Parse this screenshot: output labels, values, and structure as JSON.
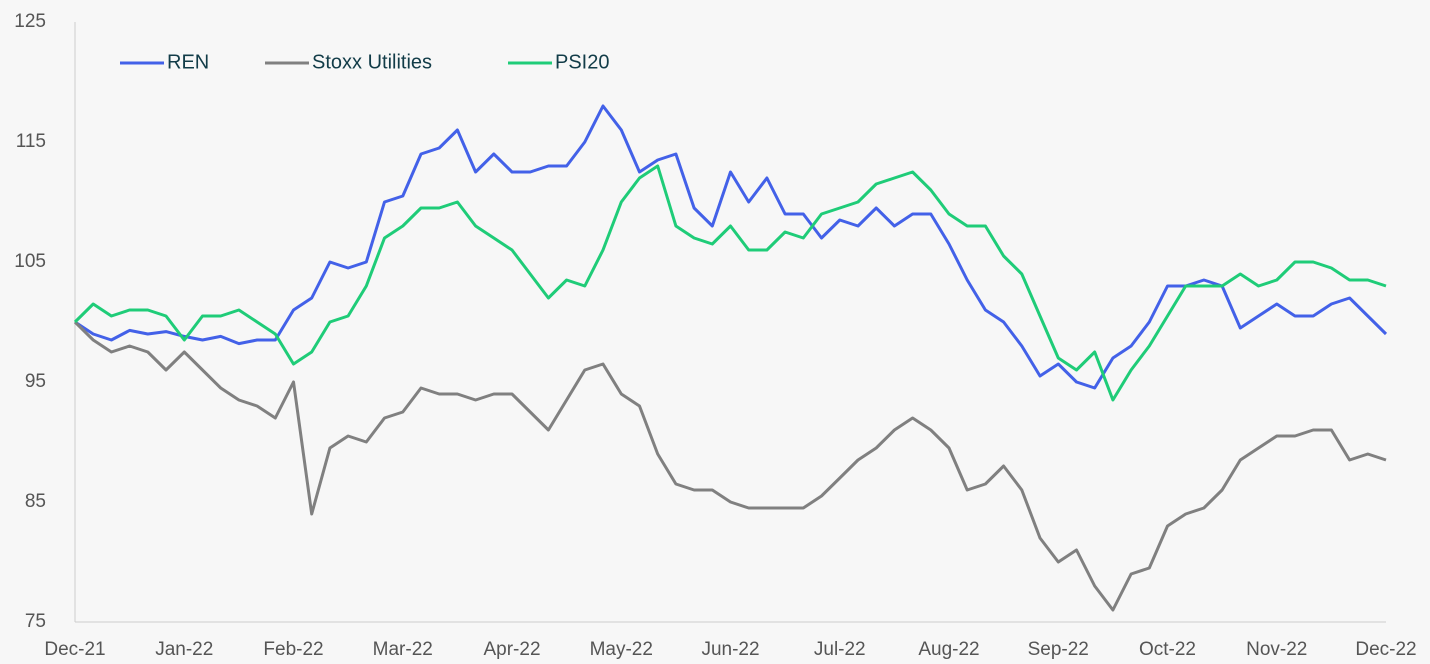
{
  "chart_data": {
    "type": "line",
    "categories": [
      "Dec-21",
      null,
      null,
      null,
      null,
      null,
      "Jan-22",
      null,
      null,
      null,
      null,
      null,
      "Feb-22",
      null,
      null,
      null,
      null,
      null,
      "Mar-22",
      null,
      null,
      null,
      null,
      null,
      "Apr-22",
      null,
      null,
      null,
      null,
      null,
      "May-22",
      null,
      null,
      null,
      null,
      null,
      "Jun-22",
      null,
      null,
      null,
      null,
      null,
      "Jul-22",
      null,
      null,
      null,
      null,
      null,
      "Aug-22",
      null,
      null,
      null,
      null,
      null,
      "Sep-22",
      null,
      null,
      null,
      null,
      null,
      "Oct-22",
      null,
      null,
      null,
      null,
      null,
      "Nov-22",
      null,
      null,
      null,
      null,
      null,
      "Dec-22"
    ],
    "series": [
      {
        "name": "REN",
        "color": "#4361e8",
        "values": [
          100,
          99,
          98.5,
          99.3,
          99,
          99.2,
          98.8,
          98.5,
          98.8,
          98.2,
          98.5,
          98.5,
          101,
          102,
          105,
          104.5,
          105,
          110,
          110.5,
          114,
          114.5,
          116,
          112.5,
          114,
          112.5,
          112.5,
          113,
          113,
          115,
          118,
          116,
          112.5,
          113.5,
          114,
          109.5,
          108,
          112.5,
          110,
          112,
          109,
          109,
          107,
          108.5,
          108,
          109.5,
          108,
          109,
          109,
          106.5,
          103.5,
          101,
          100,
          98,
          95.5,
          96.5,
          95,
          94.5,
          97,
          98,
          100,
          103,
          103,
          103.5,
          103,
          99.5,
          100.5,
          101.5,
          100.5,
          100.5,
          101.5,
          102,
          100.5,
          99
        ]
      },
      {
        "name": "Stoxx Utilities",
        "color": "#808080",
        "values": [
          100,
          98.5,
          97.5,
          98,
          97.5,
          96,
          97.5,
          96,
          94.5,
          93.5,
          93,
          92,
          95,
          84,
          89.5,
          90.5,
          90,
          92,
          92.5,
          94.5,
          94,
          94,
          93.5,
          94,
          94,
          92.5,
          91,
          93.5,
          96,
          96.5,
          94,
          93,
          89,
          86.5,
          86,
          86,
          85,
          84.5,
          84.5,
          84.5,
          84.5,
          85.5,
          87,
          88.5,
          89.5,
          91,
          92,
          91,
          89.5,
          86,
          86.5,
          88,
          86,
          82,
          80,
          81,
          78,
          76,
          79,
          79.5,
          83,
          84,
          84.5,
          86,
          88.5,
          89.5,
          90.5,
          90.5,
          91,
          91,
          88.5,
          89,
          88.5
        ]
      },
      {
        "name": "PSI20",
        "color": "#1fcc78",
        "values": [
          100,
          101.5,
          100.5,
          101,
          101,
          100.5,
          98.5,
          100.5,
          100.5,
          101,
          100,
          99,
          96.5,
          97.5,
          100,
          100.5,
          103,
          107,
          108,
          109.5,
          109.5,
          110,
          108,
          107,
          106,
          104,
          102,
          103.5,
          103,
          106,
          110,
          112,
          113,
          108,
          107,
          106.5,
          108,
          106,
          106,
          107.5,
          107,
          109,
          109.5,
          110,
          111.5,
          112,
          112.5,
          111,
          109,
          108,
          108,
          105.5,
          104,
          100.5,
          97,
          96,
          97.5,
          93.5,
          96,
          98,
          100.5,
          103,
          103,
          103,
          104,
          103,
          103.5,
          105,
          105,
          104.5,
          103.5,
          103.5,
          103
        ]
      }
    ],
    "ylim": [
      75,
      125
    ],
    "yticks": [
      75,
      85,
      95,
      105,
      115,
      125
    ],
    "grid": false
  }
}
